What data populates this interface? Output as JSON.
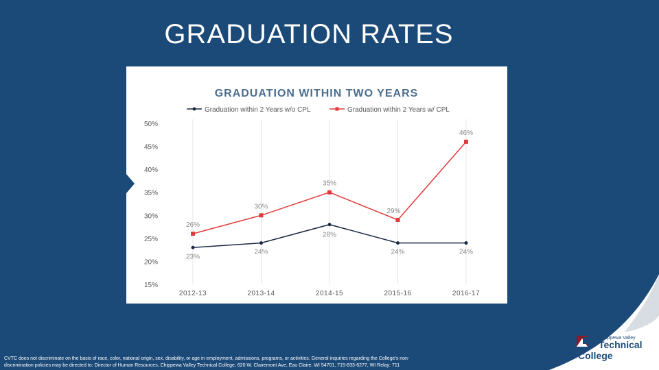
{
  "slide": {
    "title": "GRADUATION RATES",
    "footer_line1": "CVTC does not discriminate on the basis of race, color, national origin, sex, disability, or age in employment, admissions, programs, or activities. General inquiries regarding the College's non-",
    "footer_line2": "discrimination policies may be directed to: Director of Human Resources, Chippewa Valley Technical College, 620 W. Clairemont Ave, Eau Claire, WI 54701, 715-833-6277, WI Relay: 711",
    "logo": {
      "line1": "Chippewa Valley",
      "line2": "Technical",
      "line3": "College"
    }
  },
  "chart_data": {
    "type": "line",
    "title": "GRADUATION WITHIN TWO YEARS",
    "categories": [
      "2012-13",
      "2013-14",
      "2014-15",
      "2015-16",
      "2016-17"
    ],
    "ylim": [
      15,
      50
    ],
    "yticks": [
      "15%",
      "20%",
      "25%",
      "30%",
      "35%",
      "40%",
      "45%",
      "50%"
    ],
    "grid": "vertical",
    "legend_position": "top",
    "series": [
      {
        "name": "Graduation within 2 Years w/o CPL",
        "values": [
          23,
          24,
          28,
          24,
          24
        ],
        "labels": [
          "23%",
          "24%",
          "28%",
          "24%",
          "24%"
        ],
        "color": "#1b2a44",
        "marker": "circle"
      },
      {
        "name": "Graduation within 2 Years w/ CPL",
        "values": [
          26,
          30,
          35,
          29,
          46
        ],
        "labels": [
          "26%",
          "30%",
          "35%",
          "29%",
          "46%"
        ],
        "color": "#e03a3a",
        "marker": "square"
      }
    ]
  }
}
